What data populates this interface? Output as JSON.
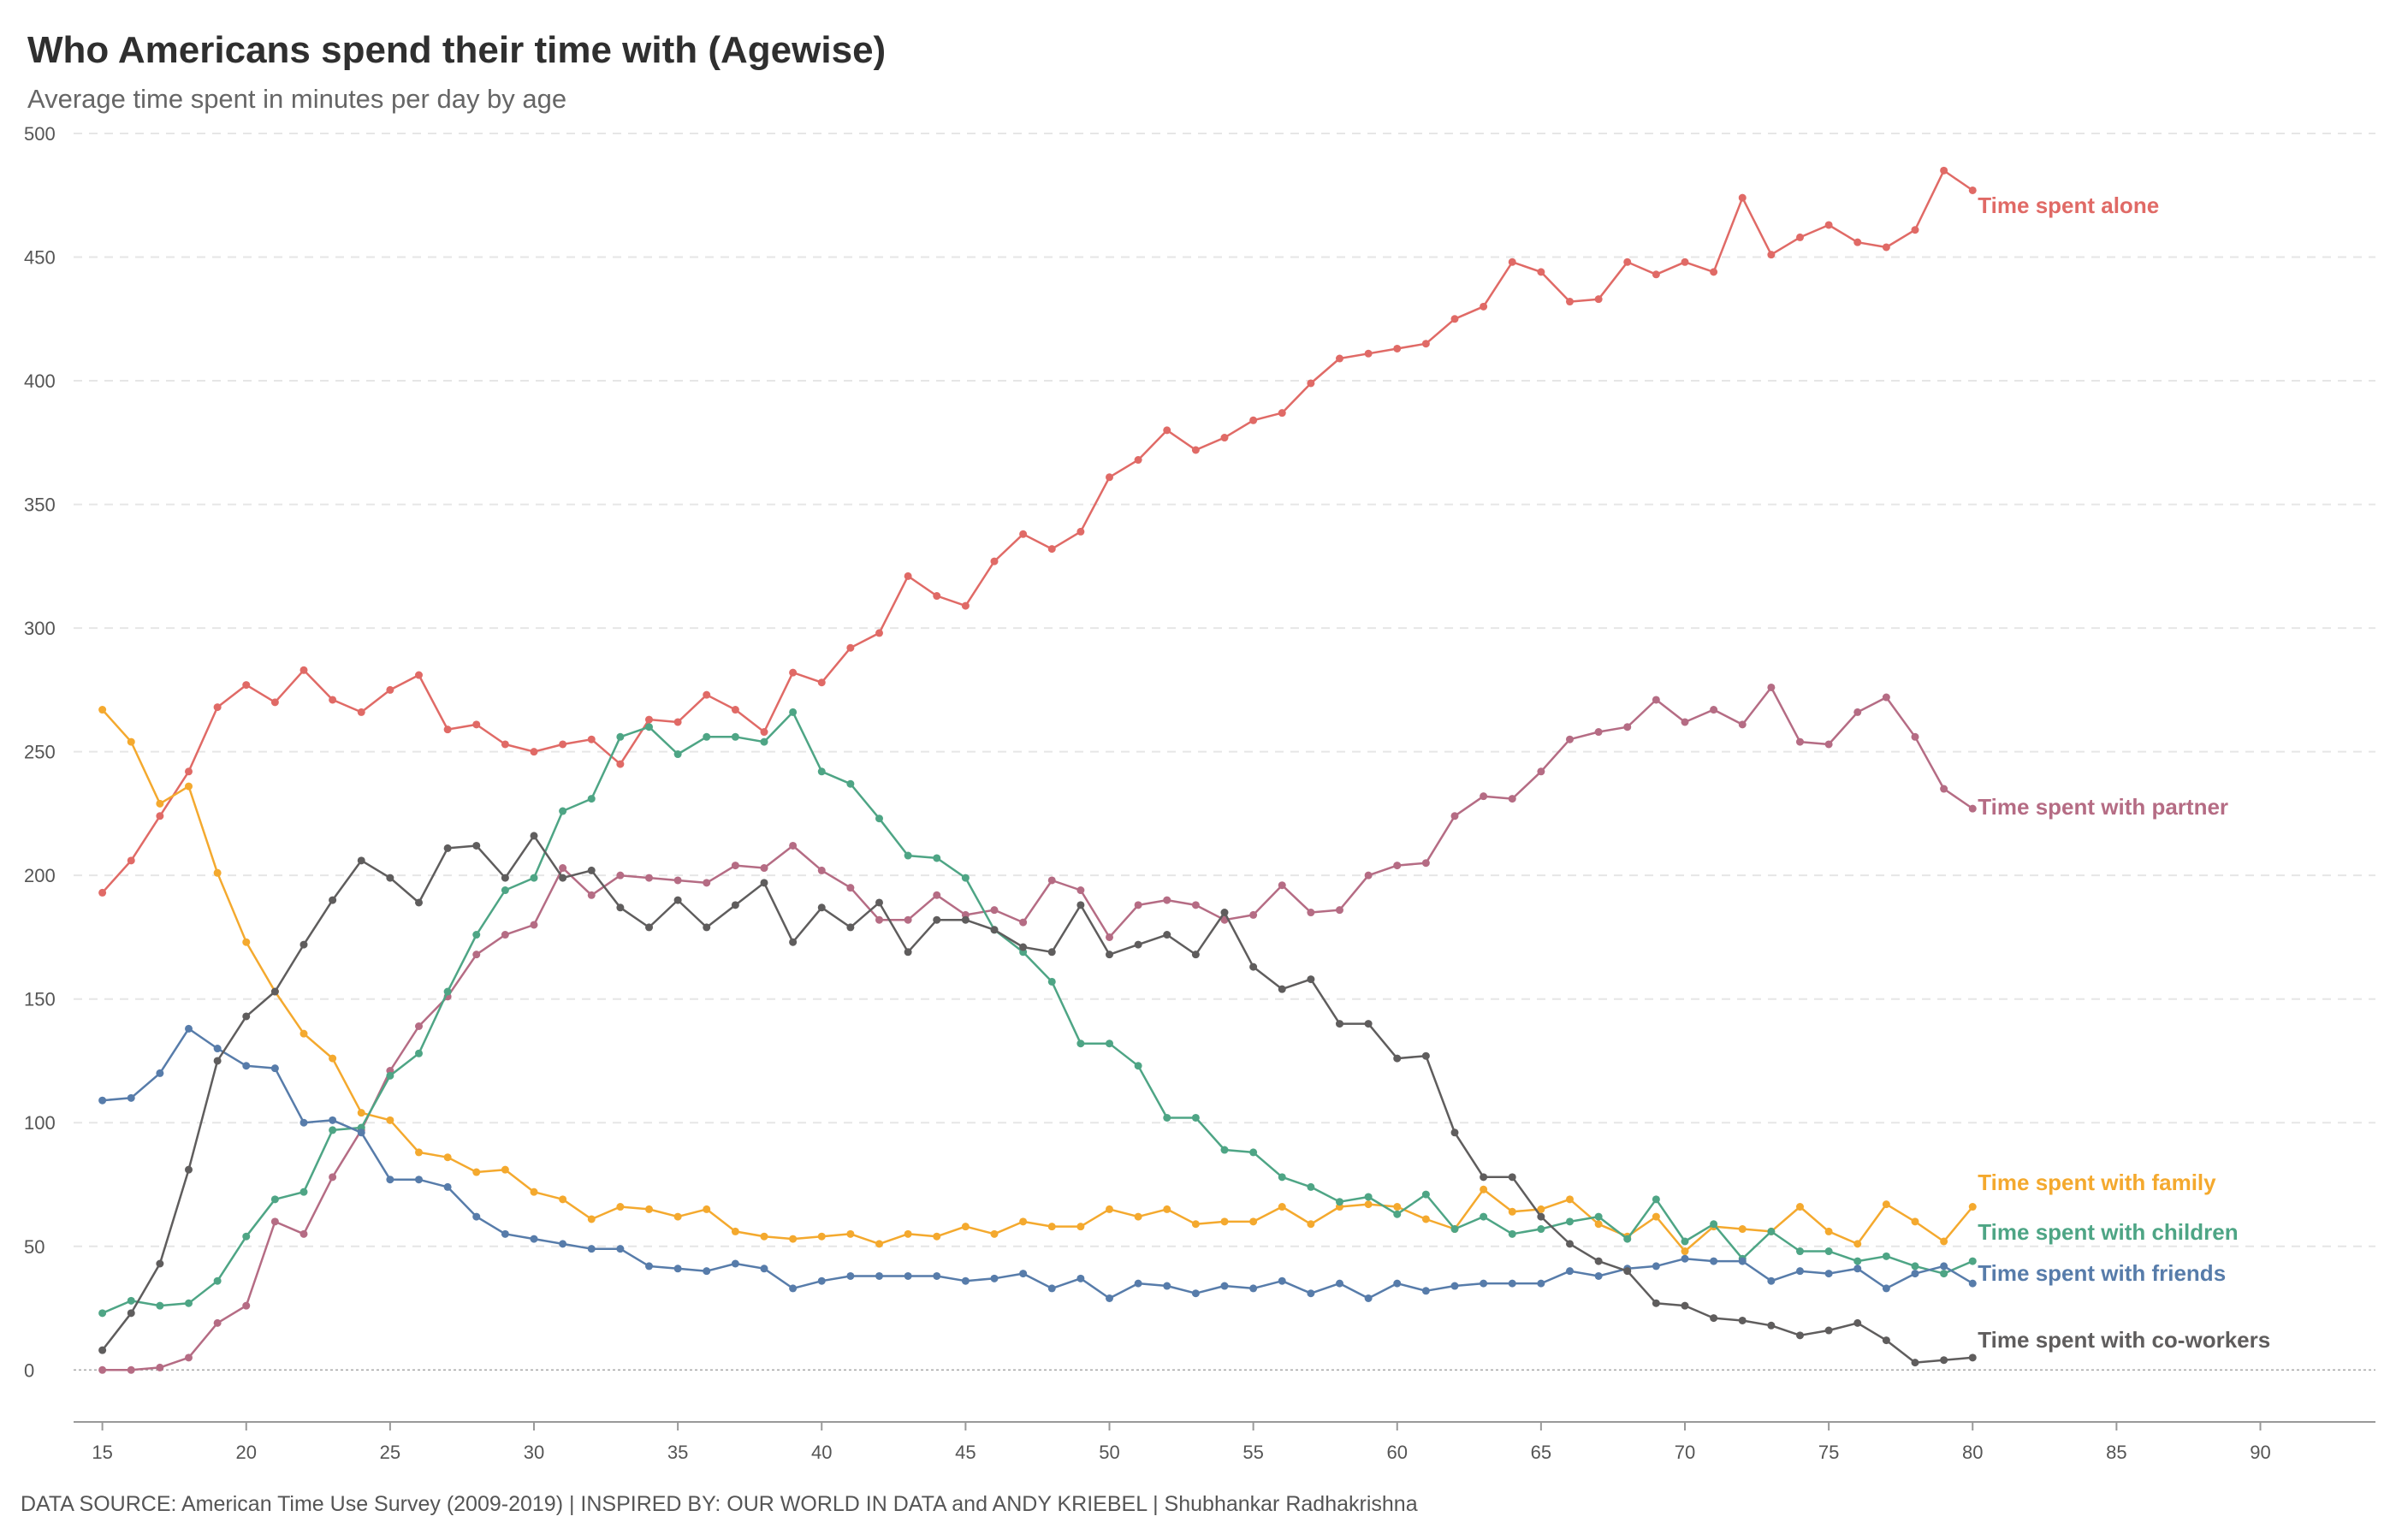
{
  "chart_data": {
    "type": "line",
    "title": "Who Americans spend their time with (Agewise)",
    "subtitle": "Average time spent in minutes per day by age",
    "xlabel": "",
    "ylabel": "",
    "xlim": [
      14,
      94
    ],
    "ylim": [
      -21,
      500
    ],
    "x_ticks": [
      15,
      20,
      25,
      30,
      35,
      40,
      45,
      50,
      55,
      60,
      65,
      70,
      75,
      80,
      85,
      90
    ],
    "y_ticks": [
      0,
      50,
      100,
      150,
      200,
      250,
      300,
      350,
      400,
      450,
      500
    ],
    "grid": true,
    "legend": "labels at end of lines",
    "x": [
      15,
      16,
      17,
      18,
      19,
      20,
      21,
      22,
      23,
      24,
      25,
      26,
      27,
      28,
      29,
      30,
      31,
      32,
      33,
      34,
      35,
      36,
      37,
      38,
      39,
      40,
      41,
      42,
      43,
      44,
      45,
      46,
      47,
      48,
      49,
      50,
      51,
      52,
      53,
      54,
      55,
      56,
      57,
      58,
      59,
      60,
      61,
      62,
      63,
      64,
      65,
      66,
      67,
      68,
      69,
      70,
      71,
      72,
      73,
      74,
      75,
      76,
      77,
      78,
      79,
      80
    ],
    "series": [
      {
        "name": "Time spent alone",
        "color": "#e06a66",
        "values": [
          193,
          206,
          224,
          242,
          268,
          277,
          270,
          283,
          271,
          266,
          275,
          281,
          259,
          261,
          253,
          250,
          253,
          255,
          245,
          263,
          262,
          273,
          267,
          258,
          282,
          278,
          292,
          298,
          321,
          313,
          309,
          327,
          338,
          332,
          339,
          361,
          368,
          380,
          372,
          377,
          384,
          387,
          399,
          409,
          411,
          413,
          415,
          425,
          430,
          448,
          444,
          432,
          433,
          448,
          443,
          448,
          444,
          474,
          451,
          458,
          463,
          456,
          454,
          461,
          485,
          477
        ]
      },
      {
        "name": "Time spent with partner",
        "color": "#b56c84",
        "values": [
          0,
          0,
          1,
          5,
          19,
          26,
          60,
          55,
          78,
          97,
          121,
          139,
          151,
          168,
          176,
          180,
          203,
          192,
          200,
          199,
          198,
          197,
          204,
          203,
          212,
          202,
          195,
          182,
          182,
          192,
          184,
          186,
          181,
          198,
          194,
          175,
          188,
          190,
          188,
          182,
          184,
          196,
          185,
          186,
          200,
          204,
          205,
          224,
          232,
          231,
          242,
          255,
          258,
          260,
          271,
          262,
          267,
          261,
          276,
          254,
          253,
          266,
          272,
          256,
          235,
          227
        ]
      },
      {
        "name": "Time spent with family",
        "color": "#f4a92e",
        "values": [
          267,
          254,
          229,
          236,
          201,
          173,
          153,
          136,
          126,
          104,
          101,
          88,
          86,
          80,
          81,
          72,
          69,
          61,
          66,
          65,
          62,
          65,
          56,
          54,
          53,
          54,
          55,
          51,
          55,
          54,
          58,
          55,
          60,
          58,
          58,
          65,
          62,
          65,
          59,
          60,
          60,
          66,
          59,
          66,
          67,
          66,
          61,
          57,
          73,
          64,
          65,
          69,
          59,
          54,
          62,
          48,
          58,
          57,
          56,
          66,
          56,
          51,
          67,
          60,
          52,
          66
        ]
      },
      {
        "name": "Time spent with children",
        "color": "#4ea585",
        "values": [
          23,
          28,
          26,
          27,
          36,
          54,
          69,
          72,
          97,
          98,
          119,
          128,
          153,
          176,
          194,
          199,
          226,
          231,
          256,
          260,
          249,
          256,
          256,
          254,
          266,
          242,
          237,
          223,
          208,
          207,
          199,
          178,
          169,
          157,
          132,
          132,
          123,
          102,
          102,
          89,
          88,
          78,
          74,
          68,
          70,
          63,
          71,
          57,
          62,
          55,
          57,
          60,
          62,
          53,
          69,
          52,
          59,
          45,
          56,
          48,
          48,
          44,
          46,
          42,
          39,
          44
        ]
      },
      {
        "name": "Time spent with friends",
        "color": "#577caa",
        "values": [
          109,
          110,
          120,
          138,
          130,
          123,
          122,
          100,
          101,
          96,
          77,
          77,
          74,
          62,
          55,
          53,
          51,
          49,
          49,
          42,
          41,
          40,
          43,
          41,
          33,
          36,
          38,
          38,
          38,
          38,
          36,
          37,
          39,
          33,
          37,
          29,
          35,
          34,
          31,
          34,
          33,
          36,
          31,
          35,
          29,
          35,
          32,
          34,
          35,
          35,
          35,
          40,
          38,
          41,
          42,
          45,
          44,
          44,
          36,
          40,
          39,
          41,
          33,
          39,
          42,
          35
        ]
      },
      {
        "name": "Time spent with co-workers",
        "color": "#5f5d5d",
        "values": [
          8,
          23,
          43,
          81,
          125,
          143,
          153,
          172,
          190,
          206,
          199,
          189,
          211,
          212,
          199,
          216,
          199,
          202,
          187,
          179,
          190,
          179,
          188,
          197,
          173,
          187,
          179,
          189,
          169,
          182,
          182,
          178,
          171,
          169,
          188,
          168,
          172,
          176,
          168,
          185,
          163,
          154,
          158,
          140,
          140,
          126,
          127,
          96,
          78,
          78,
          62,
          51,
          44,
          40,
          27,
          26,
          21,
          20,
          18,
          14,
          16,
          19,
          12,
          3,
          4,
          5
        ]
      }
    ]
  },
  "footer": "DATA SOURCE: American Time Use Survey (2009-2019) | INSPIRED BY: OUR WORLD IN DATA and ANDY KRIEBEL | Shubhankar Radhakrishna"
}
